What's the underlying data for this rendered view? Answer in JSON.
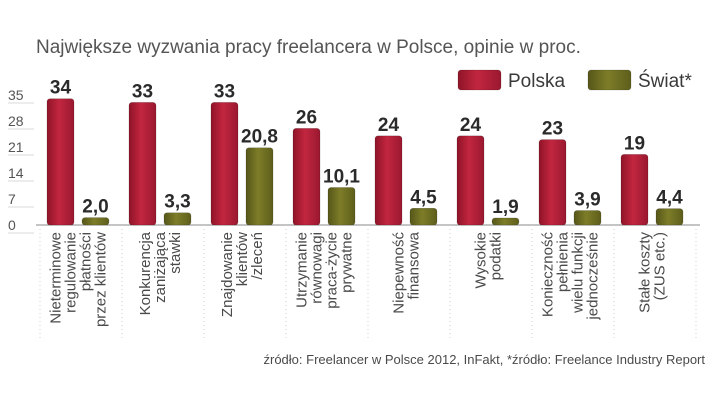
{
  "chart_data": {
    "type": "bar",
    "title": "Największe wyzwania pracy freelancera w Polsce, opinie w proc.",
    "source": "źródło: Freelancer w Polsce 2012, InFakt, *źródło: Freelance Industry Report",
    "categories": [
      [
        "Nieterminowe",
        "regulowanie",
        "płatności",
        "przez klientów"
      ],
      [
        "Konkurencja",
        "zaniżająca",
        "stawki"
      ],
      [
        "Znajdowanie",
        "klientów",
        "/zleceń"
      ],
      [
        "Utrzymanie",
        "równowagi",
        "praca-życie",
        "prywatne"
      ],
      [
        "Niepewność",
        "finansowa"
      ],
      [
        "Wysokie",
        "podatki"
      ],
      [
        "Konieczność",
        "pełnienia",
        "wielu funkcji",
        "jednocześnie"
      ],
      [
        "Stałe koszty",
        "(ZUS etc.)"
      ]
    ],
    "series": [
      {
        "name": "Polska",
        "color": "#b01e35",
        "values": [
          34,
          33,
          33,
          26,
          24,
          24,
          23,
          19
        ],
        "labels": [
          "34",
          "33",
          "33",
          "26",
          "24",
          "24",
          "23",
          "19"
        ]
      },
      {
        "name": "Świat*",
        "color": "#6b6b1f",
        "values": [
          2.0,
          3.3,
          20.8,
          10.1,
          4.5,
          1.9,
          3.9,
          4.4
        ],
        "labels": [
          "2,0",
          "3,3",
          "20,8",
          "10,1",
          "4,5",
          "1,9",
          "3,9",
          "4,4"
        ]
      }
    ],
    "yticks": [
      0,
      7,
      14,
      21,
      28,
      35
    ],
    "ylim": [
      0,
      35
    ],
    "grid": false,
    "legend": "top-right"
  }
}
